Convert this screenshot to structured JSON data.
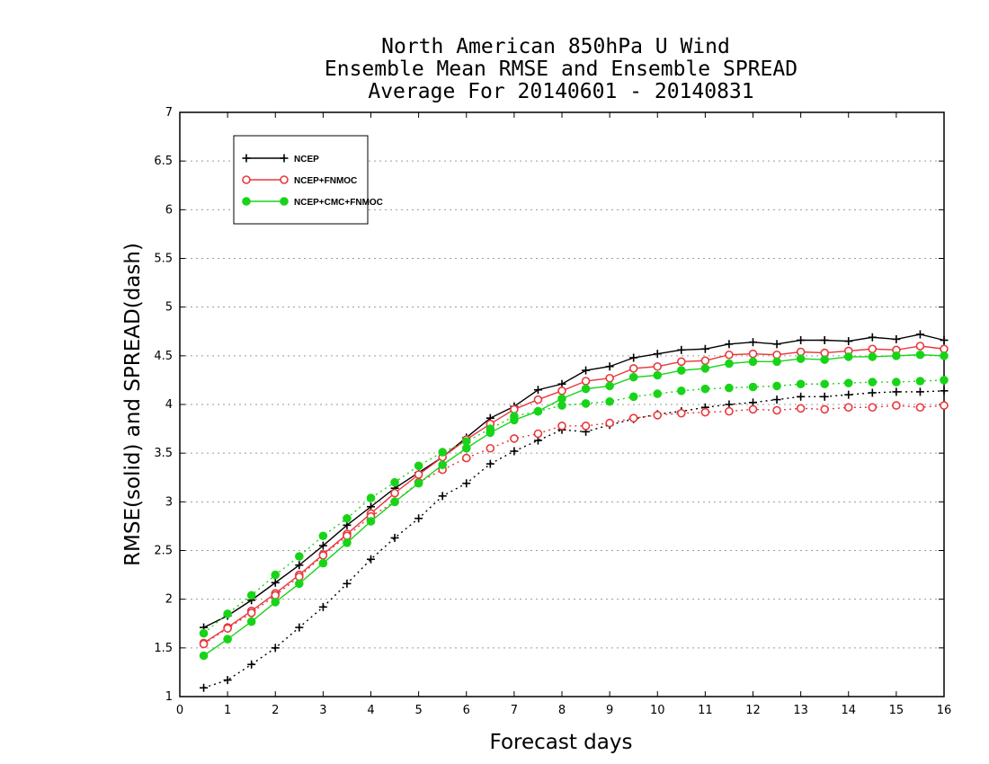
{
  "chart_data": {
    "type": "line",
    "title_lines": [
      "North American 850hPa U Wind",
      "Ensemble Mean RMSE and Ensemble SPREAD",
      "Average For 20140601 - 20140831"
    ],
    "xlabel": "Forecast days",
    "ylabel": "RMSE(solid) and SPREAD(dash)",
    "xlim": [
      0,
      16
    ],
    "ylim": [
      1,
      7
    ],
    "x_ticks": [
      "0",
      "1",
      "2",
      "3",
      "4",
      "5",
      "6",
      "7",
      "8",
      "9",
      "10",
      "11",
      "12",
      "13",
      "14",
      "15",
      "16"
    ],
    "y_ticks": [
      "1",
      "1.5",
      "2",
      "2.5",
      "3",
      "3.5",
      "4",
      "4.5",
      "5",
      "5.5",
      "6",
      "6.5",
      "7"
    ],
    "grid": true,
    "legend_position": "top-left",
    "x": [
      0.5,
      1,
      1.5,
      2,
      2.5,
      3,
      3.5,
      4,
      4.5,
      5,
      5.5,
      6,
      6.5,
      7,
      7.5,
      8,
      8.5,
      9,
      9.5,
      10,
      10.5,
      11,
      11.5,
      12,
      12.5,
      13,
      13.5,
      14,
      14.5,
      15,
      15.5,
      16
    ],
    "series": [
      {
        "name": "NCEP",
        "color": "#000000",
        "marker": "plus",
        "rmse": [
          1.71,
          1.83,
          1.99,
          2.17,
          2.35,
          2.55,
          2.76,
          2.95,
          3.14,
          3.3,
          3.46,
          3.66,
          3.86,
          3.98,
          4.15,
          4.21,
          4.35,
          4.39,
          4.48,
          4.52,
          4.56,
          4.57,
          4.62,
          4.64,
          4.62,
          4.66,
          4.66,
          4.65,
          4.69,
          4.67,
          4.72,
          4.66
        ],
        "spread": [
          1.09,
          1.17,
          1.33,
          1.5,
          1.71,
          1.92,
          2.16,
          2.41,
          2.63,
          2.83,
          3.06,
          3.19,
          3.39,
          3.52,
          3.63,
          3.74,
          3.72,
          3.79,
          3.85,
          3.9,
          3.93,
          3.97,
          4.0,
          4.02,
          4.05,
          4.08,
          4.08,
          4.1,
          4.12,
          4.13,
          4.13,
          4.14
        ]
      },
      {
        "name": "NCEP+FNMOC",
        "color": "#e8383c",
        "marker": "open-circle",
        "rmse": [
          1.55,
          1.71,
          1.88,
          2.06,
          2.25,
          2.46,
          2.67,
          2.88,
          3.09,
          3.28,
          3.46,
          3.64,
          3.8,
          3.95,
          4.05,
          4.14,
          4.24,
          4.27,
          4.37,
          4.39,
          4.44,
          4.45,
          4.51,
          4.52,
          4.51,
          4.54,
          4.53,
          4.55,
          4.57,
          4.56,
          4.6,
          4.57
        ],
        "spread": [
          1.54,
          1.7,
          1.86,
          2.04,
          2.23,
          2.45,
          2.65,
          2.85,
          3.0,
          3.2,
          3.33,
          3.45,
          3.55,
          3.65,
          3.7,
          3.78,
          3.78,
          3.81,
          3.86,
          3.89,
          3.91,
          3.92,
          3.93,
          3.95,
          3.94,
          3.96,
          3.95,
          3.97,
          3.97,
          3.99,
          3.97,
          3.99
        ]
      },
      {
        "name": "NCEP+CMC+FNMOC",
        "color": "#18d418",
        "marker": "filled-circle",
        "rmse": [
          1.42,
          1.59,
          1.77,
          1.97,
          2.16,
          2.37,
          2.58,
          2.8,
          3.0,
          3.19,
          3.38,
          3.55,
          3.71,
          3.84,
          3.93,
          4.06,
          4.16,
          4.19,
          4.28,
          4.3,
          4.35,
          4.37,
          4.42,
          4.44,
          4.44,
          4.47,
          4.46,
          4.49,
          4.49,
          4.5,
          4.51,
          4.5
        ],
        "spread": [
          1.65,
          1.85,
          2.04,
          2.25,
          2.44,
          2.65,
          2.83,
          3.04,
          3.2,
          3.37,
          3.51,
          3.62,
          3.75,
          3.88,
          3.93,
          3.99,
          4.01,
          4.03,
          4.08,
          4.11,
          4.14,
          4.16,
          4.17,
          4.18,
          4.19,
          4.21,
          4.21,
          4.22,
          4.23,
          4.23,
          4.24,
          4.25
        ]
      }
    ]
  }
}
